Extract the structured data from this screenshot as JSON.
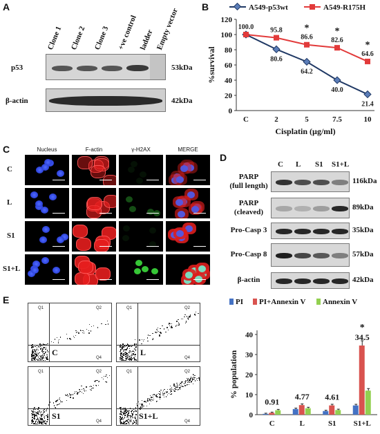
{
  "panels": {
    "A": {
      "letter": "A",
      "lanes": [
        "Clone 1",
        "Clone 2",
        "Clone 3",
        "+ve control",
        "ladder",
        "Empty vector"
      ],
      "rows": [
        {
          "name": "p53",
          "size": "53kDa"
        },
        {
          "name": "β-actin",
          "size": "42kDa"
        }
      ]
    },
    "B": {
      "letter": "B",
      "chart_data": {
        "type": "line",
        "categories": [
          "C",
          "2",
          "5",
          "7.5",
          "10"
        ],
        "series": [
          {
            "name": "A549-p53wt",
            "values": [
              100.0,
              80.6,
              64.2,
              40.0,
              21.4
            ],
            "color": "#1f3864",
            "marker": "diamond",
            "markerColor": "#5b7db8"
          },
          {
            "name": "A549-R175H",
            "values": [
              100.0,
              95.8,
              86.6,
              82.6,
              64.6
            ],
            "color": "#e23a3a",
            "marker": "square",
            "markerColor": "#e23a3a"
          }
        ],
        "labels_wt": [
          "100.0",
          "80.6",
          "64.2",
          "40.0",
          "21.4"
        ],
        "labels_mut": [
          "95.8",
          "86.6",
          "82.6",
          "64.6"
        ],
        "stars": [
          "*",
          "*",
          "*"
        ],
        "xlabel": "Cisplatin (µg/ml)",
        "ylabel": "%survival",
        "yticks": [
          "0",
          "20",
          "40",
          "60",
          "80",
          "100",
          "120"
        ],
        "ylim": [
          0,
          120
        ]
      }
    },
    "C": {
      "letter": "C",
      "columns": [
        "Nucleus",
        "F-actin",
        "γ-H2AX",
        "MERGE"
      ],
      "rows": [
        "C",
        "L",
        "S1",
        "S1+L"
      ]
    },
    "D": {
      "letter": "D",
      "lanes": [
        "C",
        "L",
        "S1",
        "S1+L"
      ],
      "rows": [
        {
          "name_line1": "PARP",
          "name_line2": "(full length)",
          "size": "116kDa"
        },
        {
          "name_line1": "PARP",
          "name_line2": "(cleaved)",
          "size": "89kDa"
        },
        {
          "name_line1": "Pro-Casp 3",
          "name_line2": "",
          "size": "35kDa"
        },
        {
          "name_line1": "Pro-Casp 8",
          "name_line2": "",
          "size": "57kDa"
        },
        {
          "name_line1": "β-actin",
          "name_line2": "",
          "size": "42kDa"
        }
      ]
    },
    "E": {
      "letter": "E",
      "flow_plots": [
        {
          "name": "C",
          "q1": "Q1",
          "q2": "Q2",
          "q3": "Q3",
          "q4": "Q4"
        },
        {
          "name": "L",
          "q1": "Q1",
          "q2": "Q2",
          "q3": "Q3",
          "q4": "Q4"
        },
        {
          "name": "S1",
          "q1": "Q1",
          "q2": "Q2",
          "q3": "Q3",
          "q4": "Q4"
        },
        {
          "name": "S1+L",
          "q1": "Q1",
          "q2": "Q2",
          "q3": "Q3",
          "q4": "Q4"
        }
      ],
      "chart_data": {
        "type": "bar",
        "categories": [
          "C",
          "L",
          "S1",
          "S1+L"
        ],
        "series": [
          {
            "name": "PI",
            "values": [
              0.4,
              2.8,
              1.8,
              4.6
            ],
            "color": "#4472c4"
          },
          {
            "name": "PI+Annexin V",
            "values": [
              0.91,
              4.77,
              4.61,
              34.5
            ],
            "color": "#d9534f"
          },
          {
            "name": "Annexin V",
            "values": [
              2.2,
              3.2,
              2.3,
              12.0
            ],
            "color": "#92d050"
          }
        ],
        "value_labels": [
          "0.91",
          "4.77",
          "4.61",
          "34.5"
        ],
        "star": "*",
        "ylabel": "% population",
        "yticks": [
          "0",
          "10",
          "20",
          "30",
          "40"
        ],
        "ylim": [
          0,
          40
        ]
      }
    }
  }
}
